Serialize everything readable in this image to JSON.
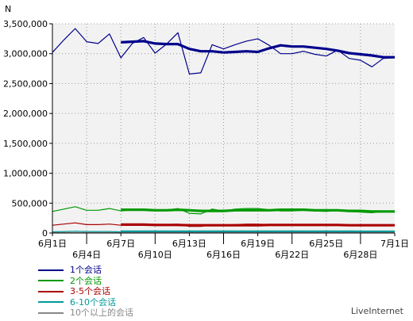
{
  "chart_data": {
    "type": "line",
    "title": "",
    "xlabel": "",
    "ylabel": "N",
    "ylim": [
      0,
      3500000
    ],
    "yticks": [
      {
        "value": 0,
        "label": "0"
      },
      {
        "value": 500000,
        "label": "500,000"
      },
      {
        "value": 1000000,
        "label": "1,000,000"
      },
      {
        "value": 1500000,
        "label": "1,500,000"
      },
      {
        "value": 2000000,
        "label": "2,000,000"
      },
      {
        "value": 2500000,
        "label": "2,500,000"
      },
      {
        "value": 3000000,
        "label": "3,000,000"
      },
      {
        "value": 3500000,
        "label": "3,500,000"
      }
    ],
    "xlim": [
      1,
      31
    ],
    "xticks": [
      {
        "day": 1,
        "label": "6月1日",
        "row": 0
      },
      {
        "day": 4,
        "label": "6月4日",
        "row": 1
      },
      {
        "day": 7,
        "label": "6月7日",
        "row": 0
      },
      {
        "day": 10,
        "label": "6月10日",
        "row": 1
      },
      {
        "day": 13,
        "label": "6月13日",
        "row": 0
      },
      {
        "day": 16,
        "label": "6月16日",
        "row": 1
      },
      {
        "day": 19,
        "label": "6月19日",
        "row": 0
      },
      {
        "day": 22,
        "label": "6月22日",
        "row": 1
      },
      {
        "day": 25,
        "label": "6月25日",
        "row": 0
      },
      {
        "day": 28,
        "label": "6月28日",
        "row": 1
      },
      {
        "day": 31,
        "label": "7月1日",
        "row": 0
      }
    ],
    "grid": true,
    "legend_position": "bottom-left",
    "series": [
      {
        "name": "1个会话",
        "color": "#00008b",
        "kind": "thin",
        "x": [
          1,
          2,
          3,
          4,
          5,
          6,
          7,
          8,
          9,
          10,
          11,
          12,
          13,
          14,
          15,
          16,
          17,
          18,
          19,
          20,
          21,
          22,
          23,
          24,
          25,
          26,
          27,
          28,
          29,
          30,
          31
        ],
        "values": [
          3020000,
          3230000,
          3420000,
          3200000,
          3170000,
          3330000,
          2930000,
          3170000,
          3270000,
          3010000,
          3160000,
          3350000,
          2660000,
          2680000,
          3150000,
          3080000,
          3150000,
          3210000,
          3250000,
          3140000,
          3000000,
          3000000,
          3040000,
          2990000,
          2960000,
          3060000,
          2920000,
          2890000,
          2780000,
          2920000,
          2930000
        ]
      },
      {
        "name": "1个会话",
        "color": "#00008b",
        "kind": "thick",
        "x": [
          7,
          8,
          9,
          10,
          11,
          12,
          13,
          14,
          15,
          16,
          17,
          18,
          19,
          20,
          21,
          22,
          23,
          24,
          25,
          26,
          27,
          28,
          29,
          30,
          31
        ],
        "values": [
          3190000,
          3200000,
          3210000,
          3170000,
          3160000,
          3160000,
          3080000,
          3040000,
          3040000,
          3020000,
          3030000,
          3040000,
          3030000,
          3090000,
          3140000,
          3120000,
          3120000,
          3100000,
          3080000,
          3050000,
          3010000,
          2990000,
          2970000,
          2940000,
          2940000
        ]
      },
      {
        "name": "2个会话",
        "color": "#009900",
        "kind": "thin",
        "x": [
          1,
          2,
          3,
          4,
          5,
          6,
          7,
          8,
          9,
          10,
          11,
          12,
          13,
          14,
          15,
          16,
          17,
          18,
          19,
          20,
          21,
          22,
          23,
          24,
          25,
          26,
          27,
          28,
          29,
          30,
          31
        ],
        "values": [
          360000,
          400000,
          440000,
          380000,
          380000,
          410000,
          370000,
          390000,
          400000,
          370000,
          380000,
          410000,
          330000,
          320000,
          400000,
          370000,
          400000,
          410000,
          410000,
          390000,
          370000,
          370000,
          380000,
          370000,
          360000,
          380000,
          360000,
          350000,
          340000,
          360000,
          360000
        ]
      },
      {
        "name": "2个会话",
        "color": "#009900",
        "kind": "thick",
        "x": [
          7,
          8,
          9,
          10,
          11,
          12,
          13,
          14,
          15,
          16,
          17,
          18,
          19,
          20,
          21,
          22,
          23,
          24,
          25,
          26,
          27,
          28,
          29,
          30,
          31
        ],
        "values": [
          390000,
          390000,
          390000,
          380000,
          380000,
          390000,
          380000,
          370000,
          370000,
          370000,
          380000,
          380000,
          380000,
          380000,
          390000,
          390000,
          390000,
          380000,
          380000,
          380000,
          370000,
          370000,
          360000,
          360000,
          360000
        ]
      },
      {
        "name": "3-5个会话",
        "color": "#aa0000",
        "kind": "thin",
        "x": [
          1,
          2,
          3,
          4,
          5,
          6,
          7,
          8,
          9,
          10,
          11,
          12,
          13,
          14,
          15,
          16,
          17,
          18,
          19,
          20,
          21,
          22,
          23,
          24,
          25,
          26,
          27,
          28,
          29,
          30,
          31
        ],
        "values": [
          130000,
          150000,
          170000,
          140000,
          140000,
          150000,
          130000,
          140000,
          150000,
          130000,
          140000,
          150000,
          110000,
          110000,
          140000,
          130000,
          140000,
          150000,
          150000,
          140000,
          130000,
          130000,
          140000,
          130000,
          130000,
          140000,
          130000,
          130000,
          120000,
          130000,
          130000
        ]
      },
      {
        "name": "3-5个会话",
        "color": "#aa0000",
        "kind": "thick",
        "x": [
          7,
          8,
          9,
          10,
          11,
          12,
          13,
          14,
          15,
          16,
          17,
          18,
          19,
          20,
          21,
          22,
          23,
          24,
          25,
          26,
          27,
          28,
          29,
          30,
          31
        ],
        "values": [
          140000,
          140000,
          140000,
          135000,
          135000,
          135000,
          130000,
          130000,
          130000,
          130000,
          130000,
          130000,
          130000,
          135000,
          135000,
          135000,
          135000,
          135000,
          135000,
          135000,
          130000,
          130000,
          130000,
          130000,
          130000
        ]
      },
      {
        "name": "6-10个会话",
        "color": "#009999",
        "kind": "thin",
        "x": [
          1,
          2,
          3,
          4,
          5,
          6,
          7,
          8,
          9,
          10,
          11,
          12,
          13,
          14,
          15,
          16,
          17,
          18,
          19,
          20,
          21,
          22,
          23,
          24,
          25,
          26,
          27,
          28,
          29,
          30,
          31
        ],
        "values": [
          20000,
          25000,
          30000,
          25000,
          25000,
          25000,
          20000,
          25000,
          25000,
          20000,
          22000,
          25000,
          18000,
          18000,
          22000,
          22000,
          23000,
          24000,
          24000,
          22000,
          21000,
          21000,
          22000,
          21000,
          20000,
          22000,
          20000,
          20000,
          19000,
          20000,
          20000
        ]
      },
      {
        "name": "6-10个会话",
        "color": "#009999",
        "kind": "thick",
        "x": [
          7,
          8,
          9,
          10,
          11,
          12,
          13,
          14,
          15,
          16,
          17,
          18,
          19,
          20,
          21,
          22,
          23,
          24,
          25,
          26,
          27,
          28,
          29,
          30,
          31
        ],
        "values": [
          23000,
          23000,
          23000,
          22000,
          22000,
          22000,
          21000,
          21000,
          21000,
          21000,
          22000,
          22000,
          22000,
          22000,
          22000,
          22000,
          22000,
          21000,
          21000,
          21000,
          21000,
          20000,
          20000,
          20000,
          20000
        ]
      },
      {
        "name": "10个以上的会话",
        "color": "#888888",
        "kind": "thin",
        "x": [
          1,
          2,
          3,
          4,
          5,
          6,
          7,
          8,
          9,
          10,
          11,
          12,
          13,
          14,
          15,
          16,
          17,
          18,
          19,
          20,
          21,
          22,
          23,
          24,
          25,
          26,
          27,
          28,
          29,
          30,
          31
        ],
        "values": [
          5000,
          6000,
          7000,
          6000,
          6000,
          6000,
          5000,
          6000,
          6000,
          5000,
          6000,
          6000,
          5000,
          5000,
          6000,
          6000,
          6000,
          6000,
          6000,
          6000,
          5000,
          5000,
          6000,
          5000,
          5000,
          6000,
          5000,
          5000,
          5000,
          5000,
          5000
        ]
      }
    ]
  },
  "legend": [
    {
      "label": "1个会话",
      "color": "#00008b"
    },
    {
      "label": "2个会话",
      "color": "#009900"
    },
    {
      "label": "3-5个会话",
      "color": "#aa0000"
    },
    {
      "label": "6-10个会话",
      "color": "#009999"
    },
    {
      "label": "10个以上的会话",
      "color": "#888888"
    }
  ],
  "brand": "LiveInternet",
  "colors": {
    "plot_background": "#f2f2f2",
    "grid": "#999999",
    "axis": "#000000"
  }
}
